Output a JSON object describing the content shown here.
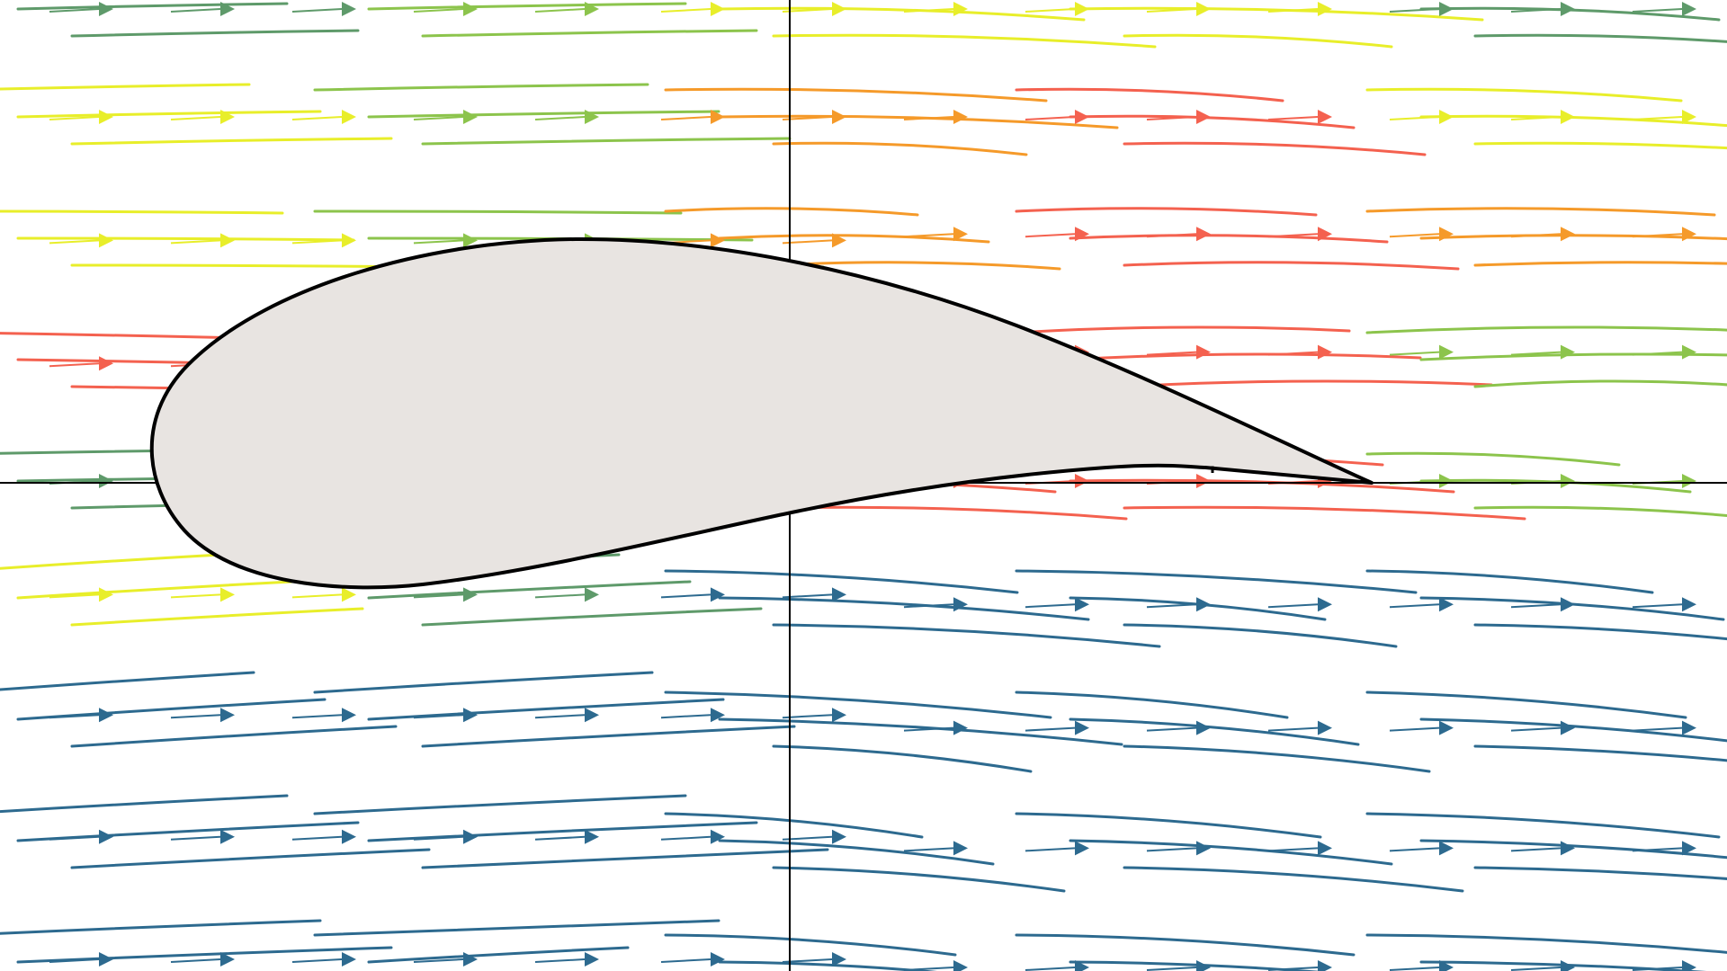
{
  "figure": {
    "description_free": true,
    "axes_visible": true,
    "colors": {
      "background": "#ffffff",
      "axes": "#000000",
      "airfoil_fill": "#e8e4e1",
      "airfoil_stroke": "#000000",
      "speed_very_low": "#2d6a8f",
      "speed_low": "#3a8a8a",
      "speed_mid": "#5e9a6a",
      "speed_mid_high": "#8cc44c",
      "speed_high": "#e8ee2a",
      "speed_very_high": "#f59a2a",
      "speed_peak": "#f4614f"
    },
    "colormap_bands": [
      "speed_peak",
      "speed_very_high",
      "speed_high",
      "speed_mid_high",
      "speed_mid",
      "speed_low",
      "speed_very_low"
    ]
  }
}
